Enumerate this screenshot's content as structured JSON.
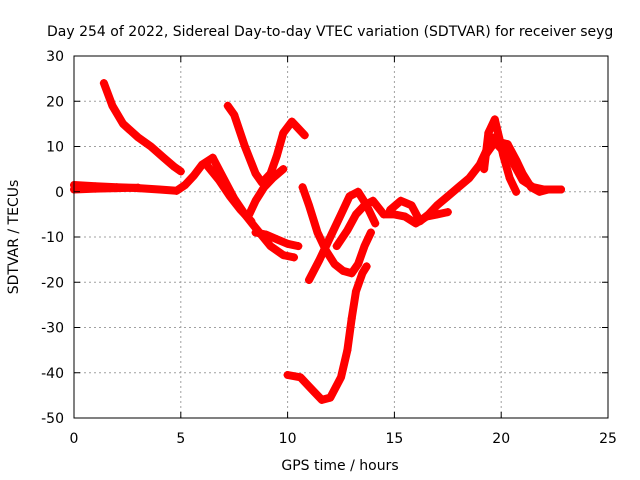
{
  "chart_data": {
    "type": "line",
    "title": "Day 254 of 2022, Sidereal Day-to-day VTEC variation (SDTVAR) for receiver seyg",
    "xlabel": "GPS time / hours",
    "ylabel": "SDTVAR / TECUs",
    "xlim": [
      0,
      25
    ],
    "ylim": [
      -50,
      30
    ],
    "xticks": [
      0,
      5,
      10,
      15,
      20,
      25
    ],
    "yticks": [
      -50,
      -40,
      -30,
      -20,
      -10,
      0,
      10,
      20,
      30
    ],
    "grid": true,
    "marker": "+",
    "color": "#ff0000",
    "series": [
      {
        "name": "seg1",
        "x": [
          0,
          1,
          2,
          3,
          4,
          4.8,
          5.2,
          5.6,
          6.0,
          6.5
        ],
        "y": [
          1.5,
          1.2,
          1.0,
          0.8,
          0.5,
          0.2,
          1.5,
          3.5,
          6.0,
          7.5
        ]
      },
      {
        "name": "seg2",
        "x": [
          1.4,
          1.8,
          2.3,
          3.0,
          3.6,
          4.2,
          4.7,
          5.0
        ],
        "y": [
          24,
          19,
          15,
          12,
          10,
          7.5,
          5.5,
          4.5
        ]
      },
      {
        "name": "seg3",
        "x": [
          6.5,
          7.0,
          7.5,
          8.0,
          8.5,
          9.2,
          9.8,
          10.3
        ],
        "y": [
          7.5,
          3.0,
          -1.5,
          -5.0,
          -8.0,
          -12.0,
          -14.0,
          -14.5
        ]
      },
      {
        "name": "seg4",
        "x": [
          6.2,
          6.8,
          7.3,
          7.8,
          8.3
        ],
        "y": [
          6.0,
          2.5,
          -1.0,
          -4.0,
          -6.5
        ]
      },
      {
        "name": "seg5",
        "x": [
          7.2,
          7.5,
          8.0,
          8.5,
          8.8,
          9.2,
          9.5,
          9.8,
          10.2,
          10.8
        ],
        "y": [
          19,
          17,
          10,
          4,
          2,
          4,
          8,
          13,
          15.5,
          12.5
        ]
      },
      {
        "name": "seg6",
        "x": [
          8.2,
          8.5,
          8.9,
          9.3,
          9.8
        ],
        "y": [
          -5.0,
          -2.0,
          1.0,
          3.0,
          5.0
        ]
      },
      {
        "name": "seg7",
        "x": [
          8.5,
          9.0,
          9.5,
          10.0,
          10.5
        ],
        "y": [
          -9.0,
          -9.5,
          -10.5,
          -11.5,
          -12.0
        ]
      },
      {
        "name": "seg8",
        "x": [
          10.7,
          11.0,
          11.4,
          11.8,
          12.2,
          12.6,
          13.0,
          13.3,
          13.6,
          13.9
        ],
        "y": [
          1.0,
          -3.0,
          -9.0,
          -13.0,
          -16.0,
          -17.5,
          -18.0,
          -16.0,
          -12.0,
          -9.0
        ]
      },
      {
        "name": "seg9",
        "x": [
          11.0,
          11.5,
          12.0,
          12.5,
          12.9,
          13.3,
          13.7,
          14.1
        ],
        "y": [
          -19.5,
          -15.0,
          -10.0,
          -5.0,
          -1.0,
          0.0,
          -3.0,
          -7.0
        ]
      },
      {
        "name": "seg10",
        "x": [
          10.0,
          10.6,
          11.2,
          11.6,
          12.0,
          12.5,
          12.8,
          13.0,
          13.2,
          13.5,
          13.7
        ],
        "y": [
          -40.5,
          -41.0,
          -44.0,
          -46.0,
          -45.5,
          -41.0,
          -35.0,
          -28.0,
          -22.0,
          -18.0,
          -16.5
        ]
      },
      {
        "name": "seg11",
        "x": [
          12.3,
          12.8,
          13.2,
          13.6,
          14.0,
          14.5,
          15.0,
          15.5,
          16.0,
          16.5,
          17.0,
          17.5
        ],
        "y": [
          -12.0,
          -8.5,
          -5.0,
          -3.0,
          -2.0,
          -5.0,
          -5.0,
          -5.5,
          -7.0,
          -5.5,
          -5.0,
          -4.5
        ]
      },
      {
        "name": "seg12",
        "x": [
          14.8,
          15.3,
          15.8,
          16.2,
          16.6,
          17.0,
          17.5,
          18.0,
          18.5,
          19.0,
          19.3,
          19.6,
          19.9,
          20.3,
          20.7,
          21.0,
          21.4,
          21.8,
          22.2,
          22.8
        ],
        "y": [
          -4.0,
          -2.0,
          -3.0,
          -6.5,
          -5.0,
          -3.0,
          -1.0,
          1.0,
          3.0,
          6.0,
          9.0,
          12.0,
          11.0,
          10.5,
          7.0,
          4.0,
          1.0,
          0.0,
          0.5,
          0.5
        ]
      },
      {
        "name": "seg13",
        "x": [
          19.1,
          19.4,
          19.7,
          20.0,
          20.3,
          20.6,
          21.0,
          21.5,
          22.0,
          22.8
        ],
        "y": [
          7.0,
          9.0,
          11.0,
          9.5,
          10.5,
          6.0,
          2.5,
          1.0,
          0.5,
          0.5
        ]
      },
      {
        "name": "seg14",
        "x": [
          19.2,
          19.4,
          19.7,
          19.9,
          20.1,
          20.4,
          20.7
        ],
        "y": [
          5.0,
          13.0,
          16.0,
          12.0,
          8.0,
          3.0,
          0.0
        ]
      },
      {
        "name": "seg15",
        "x": [
          0,
          1,
          2,
          3
        ],
        "y": [
          0.5,
          0.7,
          0.8,
          0.9
        ]
      }
    ]
  }
}
